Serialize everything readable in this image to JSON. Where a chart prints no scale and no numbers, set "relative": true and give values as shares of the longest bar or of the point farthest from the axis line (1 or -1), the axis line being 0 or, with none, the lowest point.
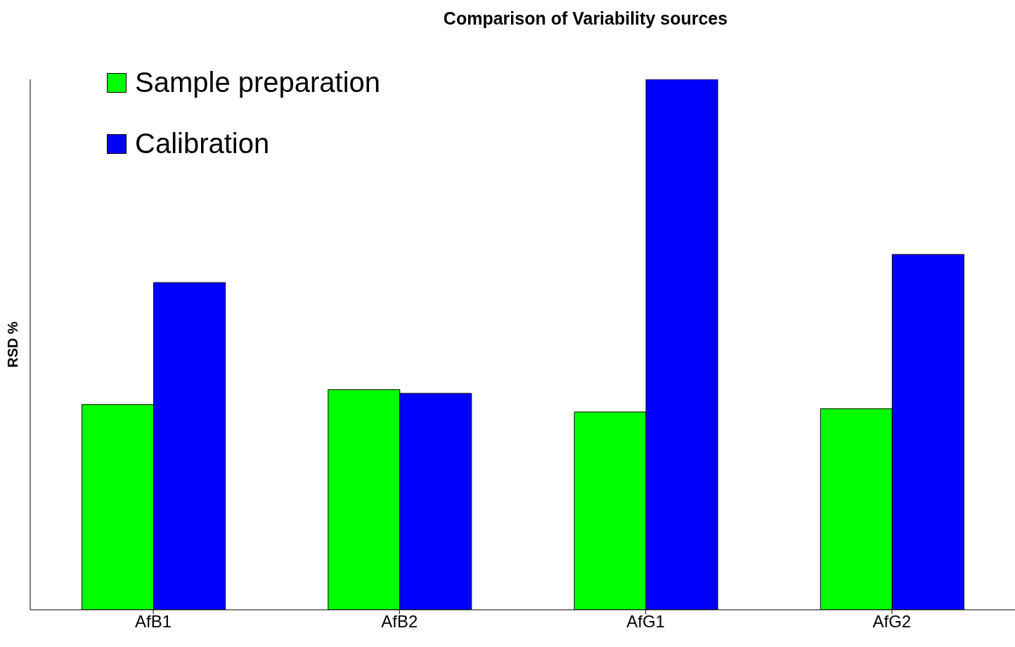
{
  "chart_data": {
    "type": "bar",
    "title": "Comparison of Variability sources",
    "ylabel": "RSD %",
    "relative": true,
    "categories": [
      "AfB1",
      "AfB2",
      "AfG1",
      "AfG2"
    ],
    "series": [
      {
        "name": "Sample preparation",
        "color": "#00ff00",
        "values": [
          0.387,
          0.415,
          0.373,
          0.379
        ]
      },
      {
        "name": "Calibration",
        "color": "#0000ff",
        "values": [
          0.617,
          0.408,
          1,
          0.67
        ]
      }
    ],
    "legend": "top left",
    "grid": false
  }
}
